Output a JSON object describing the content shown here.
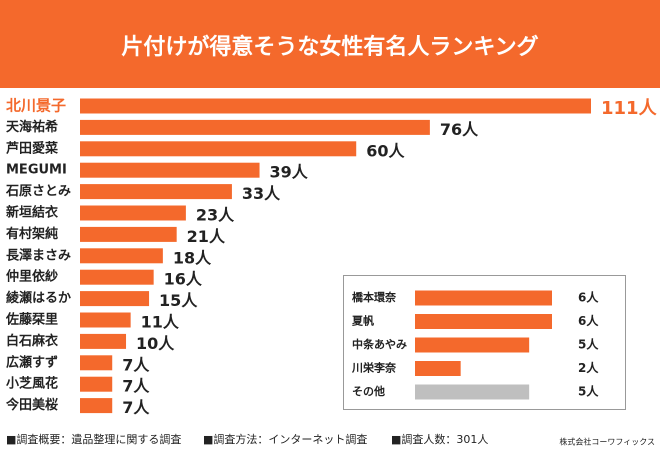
{
  "chart_data": [
    {
      "type": "bar",
      "title": "片付けが得意そうな女性有名人ランキング",
      "categories": [
        "北川景子",
        "天海祐希",
        "芦田愛菜",
        "MEGUMI",
        "石原さとみ",
        "新垣結衣",
        "有村架純",
        "長澤まさみ",
        "仲里依紗",
        "綾瀬はるか",
        "佐藤栞里",
        "白石麻衣",
        "広瀬すず",
        "小芝風花",
        "今田美桜"
      ],
      "values": [
        111,
        76,
        60,
        39,
        33,
        23,
        21,
        18,
        16,
        15,
        11,
        10,
        7,
        7,
        7
      ],
      "value_labels": [
        "111人",
        "76人",
        "60人",
        "39人",
        "33人",
        "23人",
        "21人",
        "18人",
        "16人",
        "15人",
        "11人",
        "10人",
        "7人",
        "7人",
        "7人"
      ],
      "color": "#f4692c"
    },
    {
      "type": "bar",
      "categories": [
        "橋本環奈",
        "夏帆",
        "中条あやみ",
        "川栄李奈",
        "その他"
      ],
      "values": [
        6,
        6,
        5,
        2,
        5
      ],
      "value_labels": [
        "6人",
        "6人",
        "5人",
        "2人",
        "5人"
      ],
      "colors": [
        "#f4692c",
        "#f4692c",
        "#f4692c",
        "#f4692c",
        "#bfbfbf"
      ]
    }
  ],
  "footer": {
    "notes": [
      "■調査概要：遺品整理に関する調査",
      "■調査方法：インターネット調査",
      "■調査人数：301人"
    ],
    "credit": "株式会社コーワフィックス"
  }
}
